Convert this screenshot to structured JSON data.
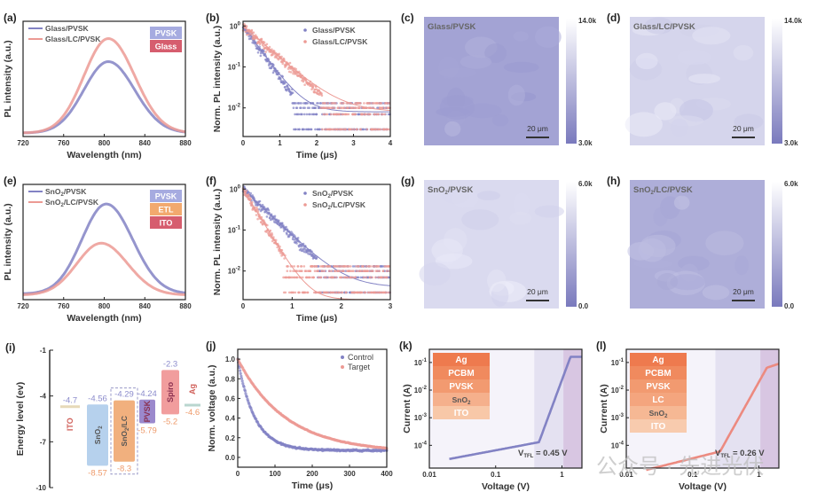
{
  "colors": {
    "purple": "#8282c4",
    "pink": "#ec9a94",
    "red": "#e26a5a",
    "orange": "#f29d6a",
    "axis": "#222222"
  },
  "chart_data": [
    {
      "id": "a",
      "panel_label": "(a)",
      "type": "line",
      "xlabel": "Wavelength (nm)",
      "ylabel": "PL intensity (a.u.)",
      "xlim": [
        720,
        880
      ],
      "xticks": [
        720,
        760,
        800,
        840,
        880
      ],
      "series": [
        {
          "name": "Glass/PVSK",
          "color": "#8282c4",
          "peak_x": 804,
          "peak": 0.62,
          "baseline": 0.03
        },
        {
          "name": "Glass/LC/PVSK",
          "color": "#ec9a94",
          "peak_x": 804,
          "peak": 0.82,
          "baseline": 0.03
        }
      ],
      "inset_stack": [
        {
          "label": "PVSK",
          "color": "#a6abe0"
        },
        {
          "label": "Glass",
          "color": "#d65d6e"
        }
      ]
    },
    {
      "id": "b",
      "panel_label": "(b)",
      "type": "scatter",
      "xlabel": "Time (μs)",
      "ylabel": "Norm. PL intensity (a.u.)",
      "xlim": [
        0,
        4
      ],
      "xticks": [
        0,
        1,
        2,
        3,
        4
      ],
      "ylog": true,
      "ylim": [
        0.002,
        1.3
      ],
      "yticks": [
        "10^0",
        "10^-1",
        "10^-2"
      ],
      "series": [
        {
          "name": "Glass/PVSK",
          "color": "#8282c4",
          "tau": 0.35,
          "floor": 0.008
        },
        {
          "name": "Glass/LC/PVSK",
          "color": "#ec9a94",
          "tau": 0.55,
          "floor": 0.008
        }
      ]
    },
    {
      "id": "c",
      "panel_label": "(c)",
      "type": "heatmap",
      "title": "Glass/PVSK",
      "colorbar": {
        "max": "14.0k",
        "min": "3.0k"
      },
      "scale_bar": "20 μm",
      "mean_level": 0.3
    },
    {
      "id": "d",
      "panel_label": "(d)",
      "type": "heatmap",
      "title": "Glass/LC/PVSK",
      "colorbar": {
        "max": "14.0k",
        "min": "3.0k"
      },
      "scale_bar": "20 μm",
      "mean_level": 0.75
    },
    {
      "id": "e",
      "panel_label": "(e)",
      "type": "line",
      "xlabel": "Wavelength (nm)",
      "ylabel": "PL intensity (a.u.)",
      "xlim": [
        720,
        880
      ],
      "xticks": [
        720,
        760,
        800,
        840,
        880
      ],
      "series": [
        {
          "name": "SnO2/PVSK",
          "color": "#8282c4",
          "peak_x": 802,
          "peak": 0.78,
          "baseline": 0.05
        },
        {
          "name": "SnO2/LC/PVSK",
          "color": "#ec9a94",
          "peak_x": 797,
          "peak": 0.45,
          "baseline": 0.04
        }
      ],
      "inset_stack": [
        {
          "label": "PVSK",
          "color": "#a6abe0"
        },
        {
          "label": "ETL",
          "color": "#f2a96e"
        },
        {
          "label": "ITO",
          "color": "#d65d6e"
        }
      ]
    },
    {
      "id": "f",
      "panel_label": "(f)",
      "type": "scatter",
      "xlabel": "Time (μs)",
      "ylabel": "Norm. PL intensity (a.u.)",
      "xlim": [
        0,
        3
      ],
      "xticks": [
        0,
        1,
        2,
        3
      ],
      "ylog": true,
      "ylim": [
        0.002,
        1.3
      ],
      "yticks": [
        "10^0",
        "10^-1",
        "10^-2"
      ],
      "series": [
        {
          "name": "SnO2/PVSK",
          "color": "#8282c4",
          "tau": 0.38,
          "floor": 0.004
        },
        {
          "name": "SnO2/LC/PVSK",
          "color": "#ec9a94",
          "tau": 0.22,
          "floor": 0.002
        }
      ]
    },
    {
      "id": "g",
      "panel_label": "(g)",
      "type": "heatmap",
      "title": "SnO2/PVSK",
      "colorbar": {
        "max": "6.0k",
        "min": "0.0"
      },
      "scale_bar": "20 μm",
      "mean_level": 0.8
    },
    {
      "id": "h",
      "panel_label": "(h)",
      "type": "heatmap",
      "title": "SnO2/LC/PVSK",
      "colorbar": {
        "max": "6.0k",
        "min": "0.0"
      },
      "scale_bar": "20 μm",
      "mean_level": 0.4
    },
    {
      "id": "i",
      "panel_label": "(i)",
      "type": "bar",
      "ylabel": "Energy level (ev)",
      "ylim": [
        -10,
        -1
      ],
      "yticks": [
        -1,
        -4,
        -7,
        -10
      ],
      "layers": [
        {
          "name": "ITO",
          "top": -4.7,
          "bottom": -4.7,
          "top_label": "-4.7",
          "bottom_label": "",
          "color": "#e6d9b8"
        },
        {
          "name": "SnO2",
          "top": -4.56,
          "bottom": -8.57,
          "top_label": "-4.56",
          "bottom_label": "-8.57",
          "color": "#a9c9ea"
        },
        {
          "name": "SnO2/LC",
          "top": -4.29,
          "bottom": -8.3,
          "top_label": "-4.29",
          "bottom_label": "-8.3",
          "color": "#eea267"
        },
        {
          "name": "PVSK",
          "top": -4.24,
          "bottom": -5.79,
          "top_label": "-4.24",
          "bottom_label": "-5.79",
          "color": "#8a74c4"
        },
        {
          "name": "Spiro",
          "top": -2.3,
          "bottom": -5.2,
          "top_label": "-2.3",
          "bottom_label": "-5.2",
          "color": "#ee8c8c"
        },
        {
          "name": "Ag",
          "top": -4.6,
          "bottom": -4.6,
          "top_label": "",
          "bottom_label": "-4.6",
          "color": "#b9d6cf"
        }
      ]
    },
    {
      "id": "j",
      "panel_label": "(j)",
      "type": "scatter",
      "xlabel": "Time (μs)",
      "ylabel": "Norm. voltage (a.u.)",
      "xlim": [
        0,
        400
      ],
      "xticks": [
        0,
        100,
        200,
        300,
        400
      ],
      "ylim": [
        -0.1,
        1.1
      ],
      "yticks": [
        0.0,
        0.2,
        0.4,
        0.6,
        0.8,
        1.0
      ],
      "series": [
        {
          "name": "Control",
          "color": "#8282c4",
          "tau": 45,
          "floor": 0.07
        },
        {
          "name": "Target",
          "color": "#ec9a94",
          "tau": 130,
          "floor": 0.05
        }
      ]
    },
    {
      "id": "k",
      "panel_label": "(k)",
      "type": "line",
      "xlabel": "Voltage (V)",
      "ylabel": "Current (A)",
      "xlog": true,
      "xlim": [
        0.01,
        2
      ],
      "xticks": [
        "0.01",
        "0.1",
        "1"
      ],
      "ylog": true,
      "ylim": [
        1.5e-05,
        0.3
      ],
      "yticks": [
        "10^-1",
        "10^-2",
        "10^-3",
        "10^-4"
      ],
      "annotation": "VTFL = 0.45 V",
      "vtfl": 0.45,
      "series": [
        {
          "name": "device",
          "color": "#8282c4"
        }
      ],
      "inset_stack": [
        {
          "label": "Ag",
          "color": "#ee7a4e"
        },
        {
          "label": "PCBM",
          "color": "#f08a5e"
        },
        {
          "label": "PVSK",
          "color": "#f29a70"
        },
        {
          "label": "SnO2",
          "color": "#f5b08c"
        },
        {
          "label": "ITO",
          "color": "#f8c8a8"
        }
      ]
    },
    {
      "id": "l",
      "panel_label": "(l)",
      "type": "line",
      "xlabel": "Voltage (V)",
      "ylabel": "Current (A)",
      "xlog": true,
      "xlim": [
        0.01,
        2
      ],
      "xticks": [
        "0.01",
        "0.1",
        "1"
      ],
      "ylog": true,
      "ylim": [
        1.5e-05,
        0.3
      ],
      "yticks": [
        "10^-1",
        "10^-2",
        "10^-3",
        "10^-4"
      ],
      "annotation": "VTFL = 0.26 V",
      "vtfl": 0.26,
      "series": [
        {
          "name": "device",
          "color": "#ec8a80"
        }
      ],
      "inset_stack": [
        {
          "label": "Ag",
          "color": "#ee7a4e"
        },
        {
          "label": "PCBM",
          "color": "#f08a5e"
        },
        {
          "label": "PVSK",
          "color": "#f29a70"
        },
        {
          "label": "LC",
          "color": "#f4a57e"
        },
        {
          "label": "SnO2",
          "color": "#f6b894"
        },
        {
          "label": "ITO",
          "color": "#f8cbae"
        }
      ]
    }
  ],
  "watermark": "公众号 · 先进光伏"
}
